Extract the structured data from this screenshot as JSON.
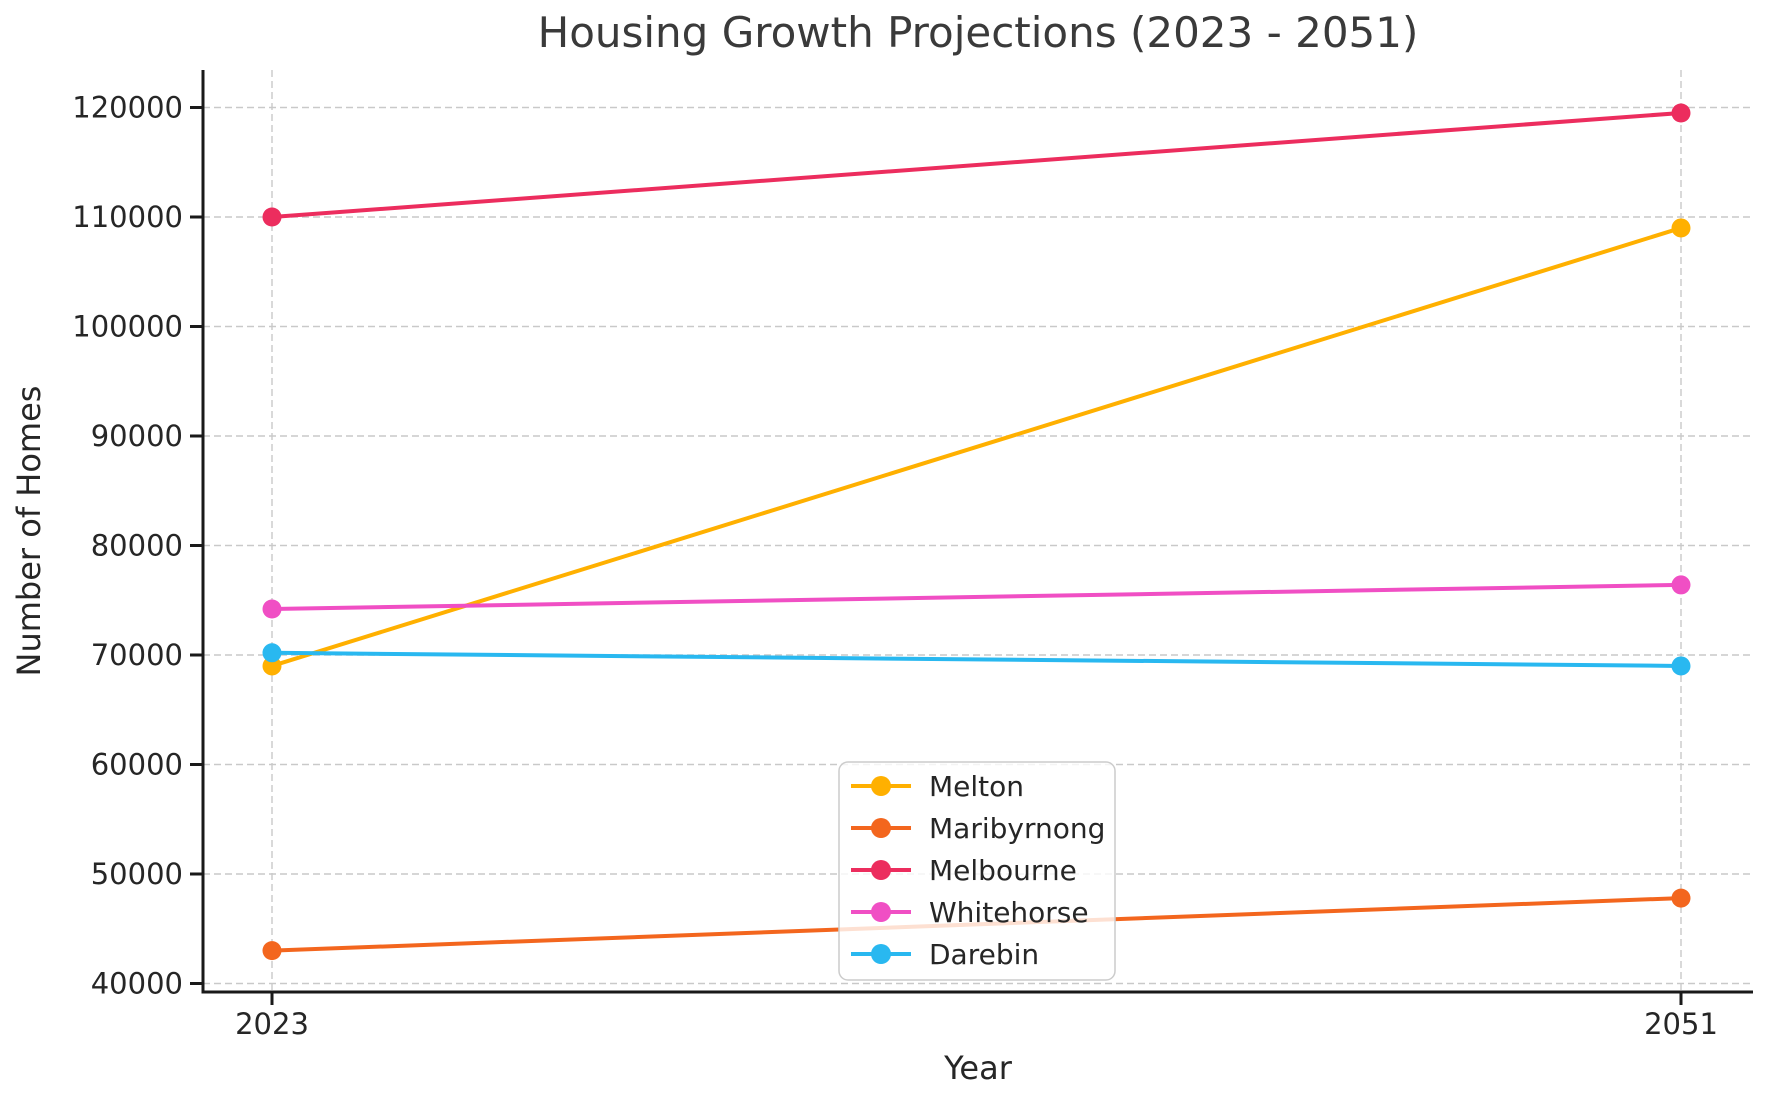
{
  "chart_data": {
    "type": "line",
    "title": "Housing Growth Projections (2023 - 2051)",
    "xlabel": "Year",
    "ylabel": "Number of Homes",
    "x": [
      2023,
      2051
    ],
    "xtick_labels": [
      "2023",
      "2051"
    ],
    "yticks": [
      40000,
      50000,
      60000,
      70000,
      80000,
      90000,
      100000,
      110000,
      120000
    ],
    "ylim": [
      39400,
      123300
    ],
    "grid": "dashed-both-axes",
    "legend_position": "lower center",
    "series": [
      {
        "name": "Melton",
        "color": "#FFB000",
        "values": [
          69000,
          109000
        ]
      },
      {
        "name": "Maribyrnong",
        "color": "#F3661E",
        "values": [
          43000,
          47800
        ]
      },
      {
        "name": "Melbourne",
        "color": "#EC2D5E",
        "values": [
          110000,
          119500
        ]
      },
      {
        "name": "Whitehorse",
        "color": "#F04FC4",
        "values": [
          74200,
          76400
        ]
      },
      {
        "name": "Darebin",
        "color": "#29B8F0",
        "values": [
          70200,
          69000
        ]
      }
    ],
    "colors": {
      "grid": "#C9C9C9",
      "axis": "#1A1A1A",
      "tick_text": "#262626",
      "title_text": "#3A3A3A",
      "legend_border": "#CCCCCC",
      "background": "#FFFFFF"
    }
  }
}
